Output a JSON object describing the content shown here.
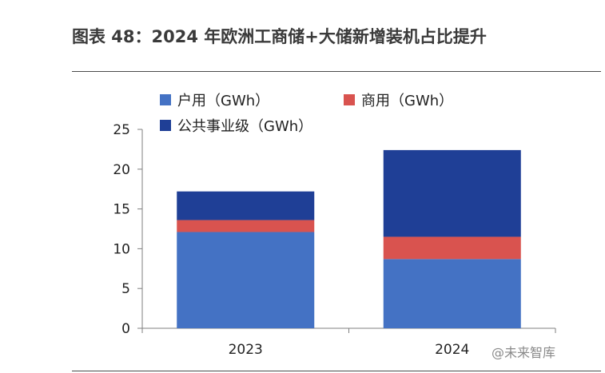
{
  "chart_data": {
    "type": "bar",
    "stacked": true,
    "title": "图表 48：2024 年欧洲工商储+大储新增装机占比提升",
    "categories": [
      "2023",
      "2024"
    ],
    "series": [
      {
        "name": "户用（GWh）",
        "color": "#4472C4",
        "values": [
          12.1,
          8.7
        ]
      },
      {
        "name": "商用（GWh）",
        "color": "#D9534F",
        "values": [
          1.5,
          2.8
        ]
      },
      {
        "name": "公共事业级（GWh）",
        "color": "#1F3F96",
        "values": [
          3.6,
          10.9
        ]
      }
    ],
    "ylim": [
      0,
      25
    ],
    "yticks": [
      0,
      5,
      10,
      15,
      20,
      25
    ],
    "xlabel": "",
    "ylabel": "",
    "grid": false,
    "legend": "top"
  },
  "watermark": "@未来智库"
}
